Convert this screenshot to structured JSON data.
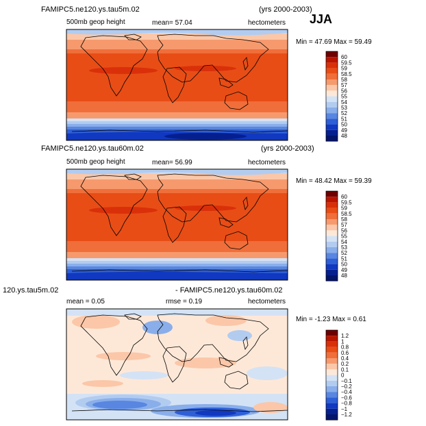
{
  "season": "JJA",
  "panels": [
    {
      "title_left": "FAMIPC5.ne120.ys.tau5m.02",
      "title_right": "(yrs 2000-2003)",
      "subtitle_left": "500mb geop height",
      "stat_text": "mean=  57.04",
      "units": "hectometers",
      "minmax_text": "Min =  47.69  Max =  59.49"
    },
    {
      "title_left": "FAMIPC5.ne120.ys.tau60m.02",
      "title_right": "(yrs 2000-2003)",
      "subtitle_left": "500mb geop height",
      "stat_text": "mean=  56.99",
      "units": "hectometers",
      "minmax_text": "Min =  48.42  Max =  59.39"
    },
    {
      "title_left": "120.ys.tau5m.02",
      "title_right": "- FAMIPC5.ne120.ys.tau60m.02",
      "subtitle_left": "mean =    0.05",
      "stat_text": "rmse =    0.19",
      "units": "hectometers",
      "minmax_text": "Min =  -1.23  Max =    0.61"
    }
  ],
  "colorbars": [
    {
      "labels": [
        "60",
        "59.5",
        "59",
        "58.5",
        "58",
        "57",
        "56",
        "55",
        "54",
        "53",
        "52",
        "51",
        "50",
        "49",
        "48"
      ],
      "colors": [
        "#6e0000",
        "#b81500",
        "#d9300a",
        "#e84d16",
        "#f06e3a",
        "#f69a6e",
        "#fbc7a8",
        "#fde8d8",
        "#d4e2f5",
        "#b2ccf0",
        "#89aeea",
        "#5886e0",
        "#2f5fd6",
        "#1038c0",
        "#061f8f",
        "#03146a"
      ]
    },
    {
      "labels": [
        "60",
        "59.5",
        "59",
        "58.5",
        "58",
        "57",
        "56",
        "55",
        "54",
        "53",
        "52",
        "51",
        "50",
        "49",
        "48"
      ],
      "colors": [
        "#6e0000",
        "#b81500",
        "#d9300a",
        "#e84d16",
        "#f06e3a",
        "#f69a6e",
        "#fbc7a8",
        "#fde8d8",
        "#d4e2f5",
        "#b2ccf0",
        "#89aeea",
        "#5886e0",
        "#2f5fd6",
        "#1038c0",
        "#061f8f",
        "#03146a"
      ]
    },
    {
      "labels": [
        "1.2",
        "1",
        "0.8",
        "0.6",
        "0.4",
        "0.2",
        "0.1",
        "0",
        "−0.1",
        "−0.2",
        "−0.4",
        "−0.6",
        "−0.8",
        "−1",
        "−1.2"
      ],
      "colors": [
        "#6e0000",
        "#b81500",
        "#d9300a",
        "#e84d16",
        "#f06e3a",
        "#f69a6e",
        "#fbc7a8",
        "#fde8d8",
        "#d4e2f5",
        "#b2ccf0",
        "#89aeea",
        "#5886e0",
        "#2f5fd6",
        "#1038c0",
        "#061f8f",
        "#03146a"
      ]
    }
  ],
  "chart_data": [
    {
      "type": "heatmap",
      "title": "FAMIPC5.ne120.ys.tau5m.02",
      "subtitle": "500mb geop height",
      "units": "hectometers",
      "mean": 57.04,
      "min": 47.69,
      "max": 59.49,
      "contour_levels": [
        48,
        49,
        50,
        51,
        52,
        53,
        54,
        55,
        56,
        57,
        58,
        58.5,
        59,
        59.5,
        60
      ]
    },
    {
      "type": "heatmap",
      "title": "FAMIPC5.ne120.ys.tau60m.02",
      "subtitle": "500mb geop height",
      "units": "hectometers",
      "mean": 56.99,
      "min": 48.42,
      "max": 59.39,
      "contour_levels": [
        48,
        49,
        50,
        51,
        52,
        53,
        54,
        55,
        56,
        57,
        58,
        58.5,
        59,
        59.5,
        60
      ]
    },
    {
      "type": "heatmap",
      "title": "120.ys.tau5m.02 - FAMIPC5.ne120.ys.tau60m.02",
      "units": "hectometers",
      "mean": 0.05,
      "rmse": 0.19,
      "min": -1.23,
      "max": 0.61,
      "contour_levels": [
        -1.2,
        -1,
        -0.8,
        -0.6,
        -0.4,
        -0.2,
        -0.1,
        0,
        0.1,
        0.2,
        0.4,
        0.6,
        0.8,
        1,
        1.2
      ]
    }
  ]
}
